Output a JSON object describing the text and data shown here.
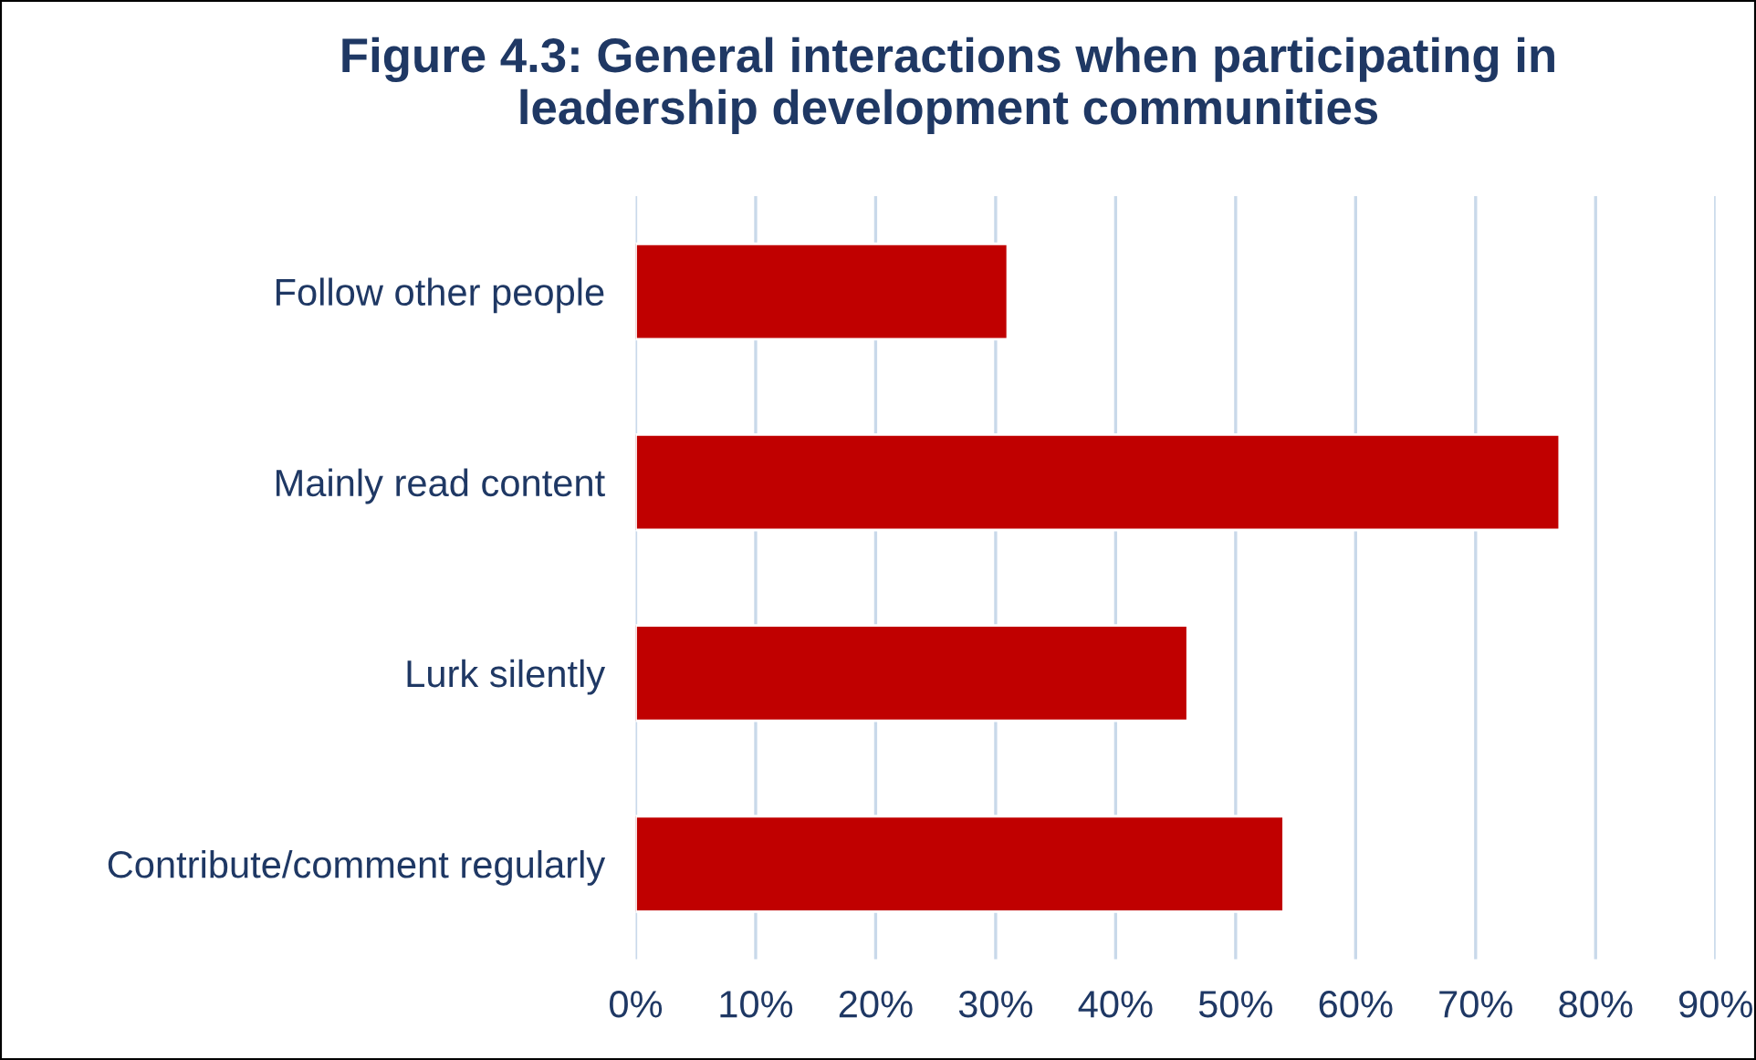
{
  "chart_data": {
    "type": "bar",
    "orientation": "horizontal",
    "title": "Figure 4.3: General interactions when participating in\nleadership development communities",
    "categories": [
      "Follow other people",
      "Mainly read content",
      "Lurk silently",
      "Contribute/comment regularly"
    ],
    "values": [
      31,
      77,
      46,
      54
    ],
    "color": "#c00000",
    "xlim": [
      0,
      90
    ],
    "xticks": [
      {
        "value": 0,
        "label": "0%"
      },
      {
        "value": 10,
        "label": "10%"
      },
      {
        "value": 20,
        "label": "20%"
      },
      {
        "value": 30,
        "label": "30%"
      },
      {
        "value": 40,
        "label": "40%"
      },
      {
        "value": 50,
        "label": "50%"
      },
      {
        "value": 60,
        "label": "60%"
      },
      {
        "value": 70,
        "label": "70%"
      },
      {
        "value": 80,
        "label": "80%"
      },
      {
        "value": 90,
        "label": "90%"
      }
    ],
    "grid": "x",
    "legend": false
  }
}
